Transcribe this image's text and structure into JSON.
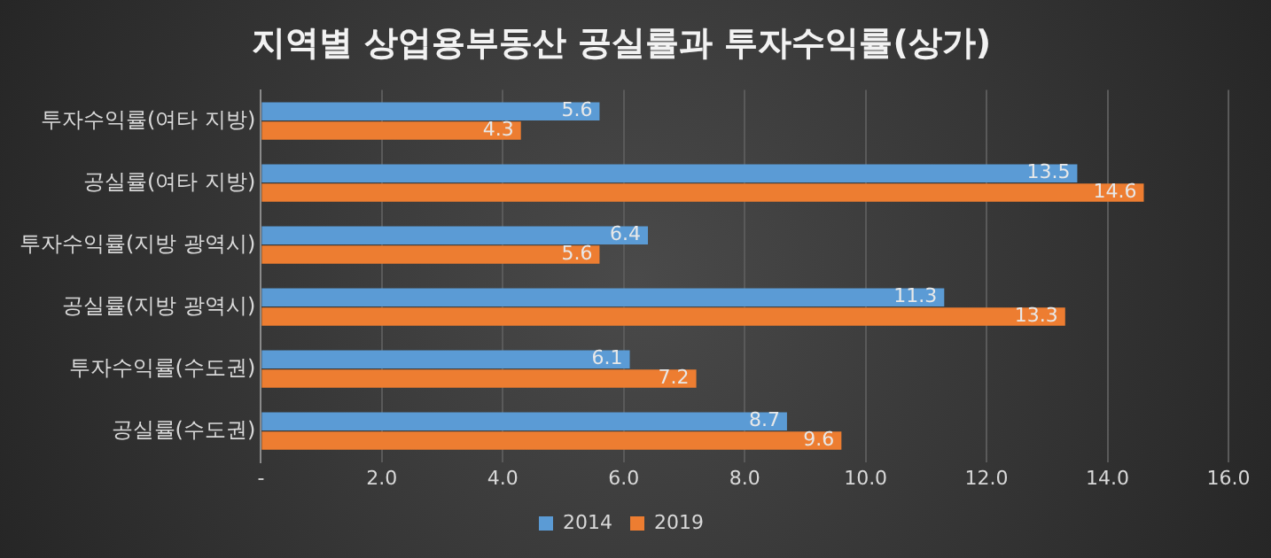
{
  "chart_data": {
    "type": "bar",
    "orientation": "horizontal",
    "title": "지역별 상업용부동산 공실률과 투자수익률(상가)",
    "categories": [
      "투자수익률(여타 지방)",
      "공실률(여타 지방)",
      "투자수익률(지방 광역시)",
      "공실률(지방 광역시)",
      "투자수익률(수도권)",
      "공실률(수도권)"
    ],
    "series": [
      {
        "name": "2014",
        "color": "#5b9bd5",
        "values": [
          5.6,
          13.5,
          6.4,
          11.3,
          6.1,
          8.7
        ]
      },
      {
        "name": "2019",
        "color": "#ed7d31",
        "values": [
          4.3,
          14.6,
          5.6,
          13.3,
          7.2,
          9.6
        ]
      }
    ],
    "xlim": [
      0,
      16
    ],
    "xticks": [
      {
        "value": 0,
        "label": "-"
      },
      {
        "value": 2,
        "label": "2.0"
      },
      {
        "value": 4,
        "label": "4.0"
      },
      {
        "value": 6,
        "label": "6.0"
      },
      {
        "value": 8,
        "label": "8.0"
      },
      {
        "value": 10,
        "label": "10.0"
      },
      {
        "value": 12,
        "label": "12.0"
      },
      {
        "value": 14,
        "label": "14.0"
      },
      {
        "value": 16,
        "label": "16.0"
      }
    ],
    "grid": "x",
    "legend": "bottom",
    "data_labels": true
  }
}
